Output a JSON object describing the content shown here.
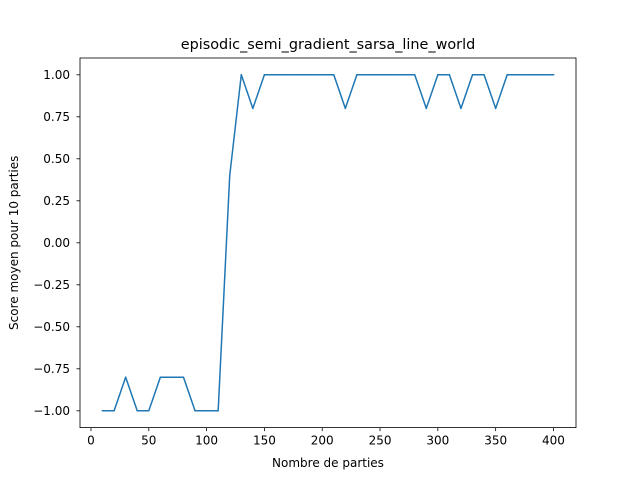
{
  "chart_data": {
    "type": "line",
    "title": "episodic_semi_gradient_sarsa_line_world",
    "xlabel": "Nombre de parties",
    "ylabel": "Score moyen pour 10 parties",
    "xlim": [
      -9.5,
      419.5
    ],
    "ylim": [
      -1.1,
      1.1
    ],
    "xticks": [
      0,
      50,
      100,
      150,
      200,
      250,
      300,
      350,
      400
    ],
    "xtick_labels": [
      "0",
      "50",
      "100",
      "150",
      "200",
      "250",
      "300",
      "350",
      "400"
    ],
    "yticks": [
      -1.0,
      -0.75,
      -0.5,
      -0.25,
      0.0,
      0.25,
      0.5,
      0.75,
      1.0
    ],
    "ytick_labels": [
      "−1.00",
      "−0.75",
      "−0.50",
      "−0.25",
      "0.00",
      "0.25",
      "0.50",
      "0.75",
      "1.00"
    ],
    "grid": false,
    "series": [
      {
        "color": "#1f77b4",
        "x": [
          10,
          20,
          30,
          40,
          50,
          60,
          70,
          80,
          90,
          100,
          110,
          120,
          130,
          140,
          150,
          160,
          170,
          180,
          190,
          200,
          210,
          220,
          230,
          240,
          250,
          260,
          270,
          280,
          290,
          300,
          310,
          320,
          330,
          340,
          350,
          360,
          370,
          380,
          390,
          400
        ],
        "y": [
          -1.0,
          -1.0,
          -0.8,
          -1.0,
          -1.0,
          -0.8,
          -0.8,
          -0.8,
          -1.0,
          -1.0,
          -1.0,
          0.4,
          1.0,
          0.8,
          1.0,
          1.0,
          1.0,
          1.0,
          1.0,
          1.0,
          1.0,
          0.8,
          1.0,
          1.0,
          1.0,
          1.0,
          1.0,
          1.0,
          0.8,
          1.0,
          1.0,
          0.8,
          1.0,
          1.0,
          0.8,
          1.0,
          1.0,
          1.0,
          1.0,
          1.0
        ]
      }
    ]
  }
}
